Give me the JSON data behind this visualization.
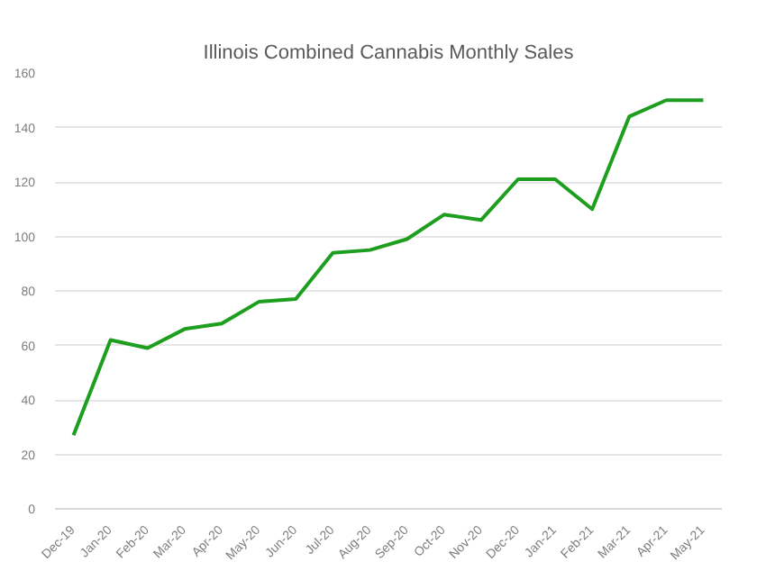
{
  "chart_data": {
    "type": "line",
    "title": "Illinois Combined Cannabis Monthly Sales",
    "categories": [
      "Dec-19",
      "Jan-20",
      "Feb-20",
      "Mar-20",
      "Apr-20",
      "May-20",
      "Jun-20",
      "Jul-20",
      "Aug-20",
      "Sep-20",
      "Oct-20",
      "Nov-20",
      "Dec-20",
      "Jan-21",
      "Feb-21",
      "Mar-21",
      "Apr-21",
      "May-21"
    ],
    "series": [
      {
        "color": "#1e9e1e",
        "values": [
          27,
          62,
          59,
          66,
          68,
          76,
          77,
          94,
          95,
          99,
          108,
          106,
          121,
          121,
          110,
          144,
          150,
          150
        ]
      }
    ],
    "ylim": [
      0,
      160
    ],
    "yticks": [
      0,
      20,
      40,
      60,
      80,
      100,
      120,
      140,
      160
    ],
    "grid": "y",
    "marker": "none",
    "line_style": "solid"
  }
}
